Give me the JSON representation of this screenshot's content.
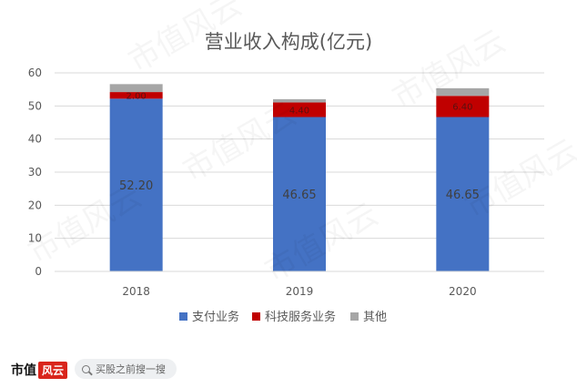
{
  "chart_data": {
    "type": "bar",
    "stacked": true,
    "title": "营业收入构成(亿元)",
    "categories": [
      "2018",
      "2019",
      "2020"
    ],
    "series": [
      {
        "name": "支付业务",
        "values": [
          52.2,
          46.65,
          46.65
        ],
        "color": "#4472C4",
        "labels": [
          "52.20",
          "46.65",
          "46.65"
        ]
      },
      {
        "name": "科技服务业务",
        "values": [
          2.0,
          4.4,
          6.4
        ],
        "color": "#C00000",
        "labels": [
          "2.00",
          "4.40",
          "6.40"
        ]
      },
      {
        "name": "其他",
        "values": [
          2.4,
          1.0,
          2.3
        ],
        "color": "#A6A6A6",
        "labels": [
          "",
          "",
          ""
        ]
      }
    ],
    "ylim": [
      0,
      60
    ],
    "yticks": [
      "0",
      "10",
      "20",
      "30",
      "40",
      "50",
      "60"
    ],
    "grid": true,
    "legend": "bottom"
  },
  "footer": {
    "brand": "市值",
    "brand_mark": "风云",
    "search_placeholder": "买股之前搜一搜"
  },
  "watermark": "市值风云",
  "colors": {
    "axis": "#D9D9D9",
    "text": "#595959"
  }
}
